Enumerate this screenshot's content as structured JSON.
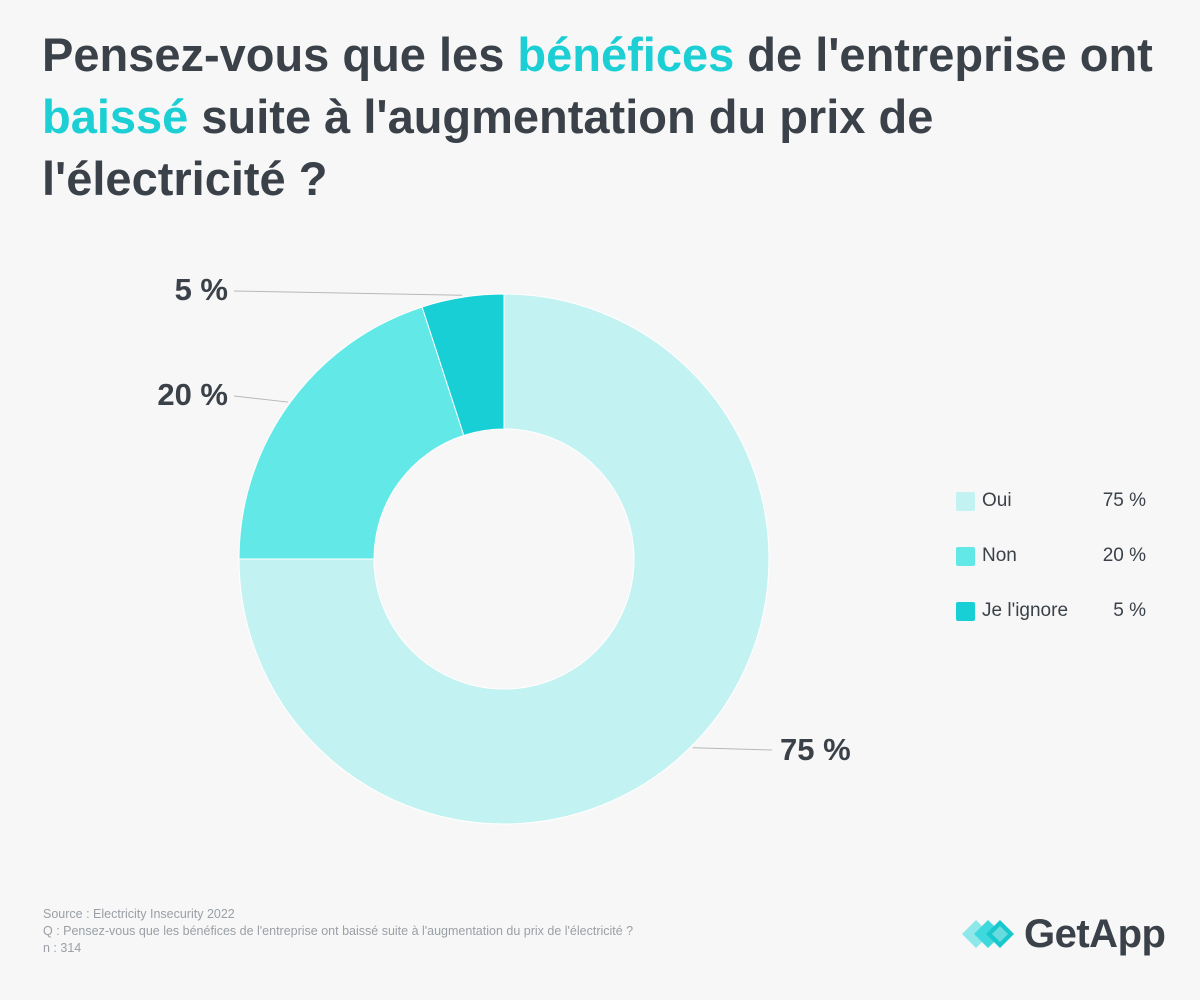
{
  "title": {
    "part1": "Pensez-vous que les ",
    "highlight1": "bénéfices",
    "part2": " de l'entreprise ont ",
    "highlight2": "baissé",
    "part3": " suite à l'augmentation du prix de l'électricité ?"
  },
  "chart_data": {
    "type": "pie",
    "donut": true,
    "title": "Pensez-vous que les bénéfices de l'entreprise ont baissé suite à l'augmentation du prix de l'électricité ?",
    "categories": [
      "Oui",
      "Non",
      "Je l'ignore"
    ],
    "values": [
      75,
      20,
      5
    ],
    "unit": "%",
    "labels": [
      "75 %",
      "20 %",
      "5 %"
    ],
    "colors": [
      "#c3f2f2",
      "#63e8e8",
      "#17cfd4"
    ],
    "legend_position": "right"
  },
  "legend": [
    {
      "label": "Oui",
      "value": "75 %"
    },
    {
      "label": "Non",
      "value": "20 %"
    },
    {
      "label": "Je l'ignore",
      "value": "5 %"
    }
  ],
  "footer": {
    "source": "Source : Electricity Insecurity 2022",
    "question": "Q : Pensez-vous que les bénéfices de l'entreprise ont baissé suite à l'augmentation du prix de l'électricité ?",
    "n": "n : 314"
  },
  "logo": {
    "text": "GetApp",
    "icon": "getapp-logo-icon"
  }
}
